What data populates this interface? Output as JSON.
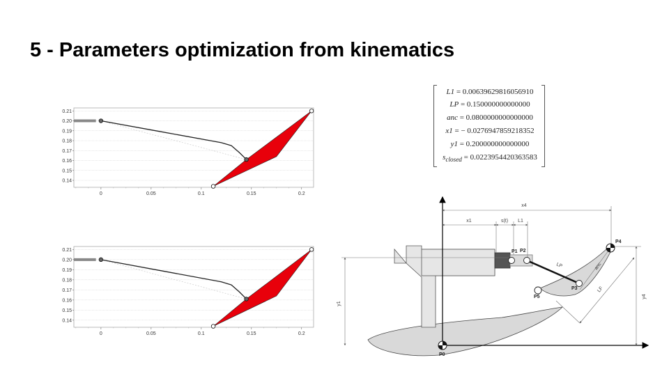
{
  "title": "5 - Parameters optimization from kinematics",
  "parameters": [
    {
      "name": "L1",
      "sub": "",
      "value": "0.00639629816056910"
    },
    {
      "name": "LP",
      "sub": "",
      "value": "0.150000000000000"
    },
    {
      "name": "anc",
      "sub": "",
      "value": "0.0800000000000000"
    },
    {
      "name": "x1",
      "sub": "",
      "value": "− 0.0276947859218352"
    },
    {
      "name": "y1",
      "sub": "",
      "value": "0.200000000000000"
    },
    {
      "name": "s",
      "sub": "closed",
      "value": "0.0223954420363583"
    }
  ],
  "chart_data": [
    {
      "type": "line",
      "xticks": [
        "0",
        "0.05",
        "0.1",
        "0.15",
        "0.2"
      ],
      "xtick_values": [
        0,
        0.05,
        0.1,
        0.15,
        0.2
      ],
      "yticks": [
        "0.14",
        "0.15",
        "0.16",
        "0.17",
        "0.18",
        "0.19",
        "0.20",
        "0.21"
      ],
      "ytick_values": [
        0.14,
        0.15,
        0.16,
        0.17,
        0.18,
        0.19,
        0.2,
        0.21
      ],
      "xlim": [
        -0.027,
        0.212
      ],
      "ylim": [
        0.133,
        0.213
      ],
      "grid": true,
      "slider": [
        [
          -0.027,
          0.2
        ],
        [
          -0.005,
          0.2
        ]
      ],
      "curve": [
        [
          0,
          0.2
        ],
        [
          0.06,
          0.189
        ],
        [
          0.12,
          0.178
        ],
        [
          0.13,
          0.175
        ],
        [
          0.138,
          0.168
        ],
        [
          0.145,
          0.161
        ]
      ],
      "dashed": [
        [
          0,
          0.2
        ],
        [
          0.145,
          0.161
        ]
      ],
      "filled_shape": [
        [
          0.112,
          0.134
        ],
        [
          0.145,
          0.161
        ],
        [
          0.21,
          0.21
        ],
        [
          0.175,
          0.164
        ],
        [
          0.112,
          0.134
        ]
      ],
      "points": [
        [
          0,
          0.2
        ],
        [
          0.145,
          0.161
        ],
        [
          0.112,
          0.134
        ],
        [
          0.21,
          0.21
        ]
      ],
      "colors": {
        "fill": "#e8000b",
        "curve": "#222222",
        "grid": "#cccccc",
        "slider": "#888888"
      }
    },
    {
      "type": "line",
      "xticks": [
        "0",
        "0.05",
        "0.1",
        "0.15",
        "0.2"
      ],
      "xtick_values": [
        0,
        0.05,
        0.1,
        0.15,
        0.2
      ],
      "yticks": [
        "0.14",
        "0.15",
        "0.16",
        "0.17",
        "0.18",
        "0.19",
        "0.20",
        "0.21"
      ],
      "ytick_values": [
        0.14,
        0.15,
        0.16,
        0.17,
        0.18,
        0.19,
        0.2,
        0.21
      ],
      "xlim": [
        -0.027,
        0.212
      ],
      "ylim": [
        0.133,
        0.213
      ],
      "grid": true,
      "slider": [
        [
          -0.027,
          0.2
        ],
        [
          -0.005,
          0.2
        ]
      ],
      "curve": [
        [
          0,
          0.2
        ],
        [
          0.06,
          0.189
        ],
        [
          0.12,
          0.178
        ],
        [
          0.13,
          0.175
        ],
        [
          0.138,
          0.168
        ],
        [
          0.145,
          0.161
        ]
      ],
      "dashed": [
        [
          0,
          0.2
        ],
        [
          0.145,
          0.161
        ]
      ],
      "filled_shape": [
        [
          0.112,
          0.134
        ],
        [
          0.145,
          0.161
        ],
        [
          0.21,
          0.21
        ],
        [
          0.175,
          0.164
        ],
        [
          0.112,
          0.134
        ]
      ],
      "points": [
        [
          0,
          0.2
        ],
        [
          0.145,
          0.161
        ],
        [
          0.112,
          0.134
        ],
        [
          0.21,
          0.21
        ]
      ],
      "colors": {
        "fill": "#e8000b",
        "curve": "#222222",
        "grid": "#cccccc",
        "slider": "#888888"
      }
    }
  ],
  "diagram": {
    "labels": {
      "x4": "x4",
      "x1": "x1",
      "s": "s(t)",
      "l1": "L1",
      "p0": "P0",
      "p1": "P1",
      "p2": "P2",
      "p3": "P3",
      "p4": "P4",
      "p5": "P5",
      "lp": "LP",
      "anc": "anc",
      "lf": "LF",
      "y1": "y1",
      "y4": "y4"
    },
    "colors": {
      "part": "#d9d9d9",
      "outline": "#444444",
      "actuator": "#555555"
    }
  }
}
